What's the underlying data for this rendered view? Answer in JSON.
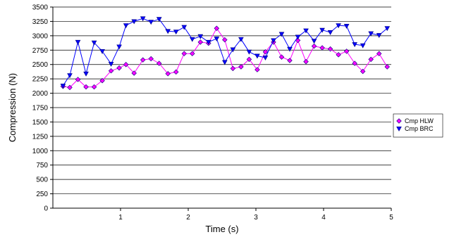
{
  "chart_data": {
    "type": "line",
    "xlabel": "Time (s)",
    "ylabel": "Compression (N)",
    "xlim": [
      0,
      5
    ],
    "ylim": [
      0,
      3500
    ],
    "x_ticks": [
      "1",
      "2",
      "3",
      "4",
      "5"
    ],
    "y_ticks": [
      "0",
      "250",
      "500",
      "750",
      "1000",
      "1250",
      "1500",
      "1750",
      "2000",
      "2250",
      "2500",
      "2750",
      "3000",
      "3250",
      "3500"
    ],
    "grid": "horizontal",
    "legend_position": "right",
    "series": [
      {
        "name": "Cmp HLW",
        "color": "#ff00ff",
        "edge": "#000080",
        "marker": "diamond",
        "x": [
          0.15,
          0.25,
          0.37,
          0.49,
          0.61,
          0.73,
          0.86,
          0.98,
          1.08,
          1.2,
          1.33,
          1.45,
          1.57,
          1.7,
          1.82,
          1.94,
          2.06,
          2.18,
          2.3,
          2.42,
          2.54,
          2.66,
          2.78,
          2.9,
          3.02,
          3.14,
          3.26,
          3.38,
          3.5,
          3.62,
          3.74,
          3.86,
          3.98,
          4.1,
          4.22,
          4.34,
          4.46,
          4.58,
          4.7,
          4.82,
          4.94
        ],
        "y": [
          2120,
          2100,
          2240,
          2110,
          2110,
          2220,
          2390,
          2440,
          2500,
          2350,
          2580,
          2600,
          2520,
          2340,
          2370,
          2690,
          2690,
          2890,
          2870,
          3130,
          2930,
          2430,
          2460,
          2590,
          2410,
          2720,
          2890,
          2630,
          2570,
          2920,
          2550,
          2820,
          2790,
          2770,
          2670,
          2730,
          2520,
          2380,
          2590,
          2690,
          2460
        ]
      },
      {
        "name": "Cmp BRC",
        "color": "#0000ff",
        "edge": "#000080",
        "marker": "triangle-down",
        "x": [
          0.15,
          0.25,
          0.37,
          0.49,
          0.61,
          0.73,
          0.86,
          0.98,
          1.08,
          1.2,
          1.33,
          1.45,
          1.57,
          1.7,
          1.82,
          1.94,
          2.06,
          2.18,
          2.3,
          2.42,
          2.54,
          2.66,
          2.78,
          2.9,
          3.02,
          3.14,
          3.26,
          3.38,
          3.5,
          3.62,
          3.74,
          3.86,
          3.98,
          4.1,
          4.22,
          4.34,
          4.46,
          4.58,
          4.7,
          4.82,
          4.94
        ],
        "y": [
          2130,
          2310,
          2890,
          2340,
          2880,
          2730,
          2510,
          2810,
          3180,
          3250,
          3300,
          3240,
          3290,
          3080,
          3070,
          3150,
          2940,
          2990,
          2890,
          2950,
          2540,
          2760,
          2940,
          2720,
          2650,
          2620,
          2920,
          3030,
          2770,
          2980,
          3090,
          2910,
          3100,
          3060,
          3180,
          3170,
          2850,
          2830,
          3040,
          3010,
          3130
        ]
      }
    ]
  }
}
